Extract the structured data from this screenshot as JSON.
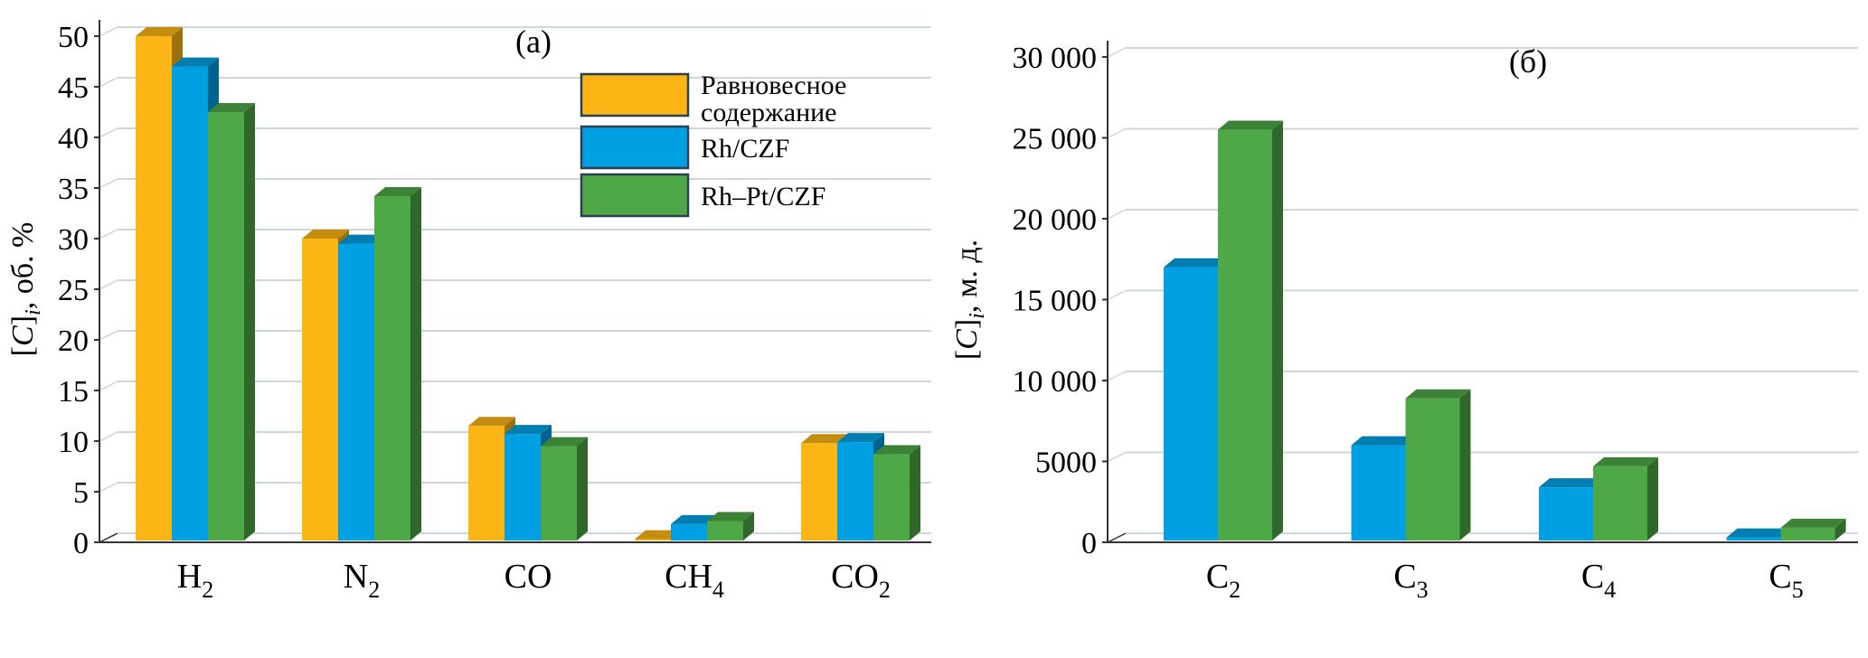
{
  "chart_data": [
    {
      "type": "bar",
      "panel_label": "(a)",
      "ylabel_main": "[C]",
      "ylabel_sub": "i",
      "ylabel_rest": ", об. %",
      "ylim": [
        0,
        50
      ],
      "yticks": [
        0,
        5,
        10,
        15,
        20,
        25,
        30,
        35,
        40,
        45,
        50
      ],
      "categories": [
        {
          "base": "H",
          "sub": "2"
        },
        {
          "base": "N",
          "sub": "2"
        },
        {
          "base": "CO",
          "sub": ""
        },
        {
          "base": "CH",
          "sub": "4"
        },
        {
          "base": "CO",
          "sub": "2"
        }
      ],
      "series": [
        {
          "name": "Равновесное содержание",
          "color": "#FBB515",
          "values": [
            50,
            30,
            11.5,
            0.3,
            9.8
          ]
        },
        {
          "name": "Rh/CZF",
          "color": "#00A0E3",
          "values": [
            47,
            29.5,
            10.7,
            1.8,
            9.9
          ]
        },
        {
          "name": "Rh–Pt/CZF",
          "color": "#4EA847",
          "values": [
            42.5,
            34.2,
            9.5,
            2.1,
            8.7
          ]
        }
      ]
    },
    {
      "type": "bar",
      "panel_label": "(б)",
      "ylabel_main": "[C]",
      "ylabel_sub": "i",
      "ylabel_rest": ", м. д.",
      "ylim": [
        0,
        30000
      ],
      "yticks": [
        0,
        5000,
        10000,
        15000,
        20000,
        25000,
        30000
      ],
      "ytick_labels": [
        "0",
        "5000",
        "10 000",
        "15 000",
        "20 000",
        "25 000",
        "30 000"
      ],
      "categories": [
        {
          "base": "C",
          "sub": "2"
        },
        {
          "base": "C",
          "sub": "3"
        },
        {
          "base": "C",
          "sub": "4"
        },
        {
          "base": "C",
          "sub": "5"
        }
      ],
      "series": [
        {
          "name": "Rh/CZF",
          "color": "#00A0E3",
          "values": [
            17000,
            6000,
            3400,
            300
          ]
        },
        {
          "name": "Rh–Pt/CZF",
          "color": "#4EA847",
          "values": [
            25500,
            8900,
            4700,
            900
          ]
        }
      ]
    }
  ],
  "legend": {
    "items": [
      {
        "line1": "Равновесное",
        "line2": "содержание",
        "color": "#FBB515"
      },
      {
        "line1": "Rh/CZF",
        "line2": "",
        "color": "#00A0E3"
      },
      {
        "line1": "Rh–Pt/CZF",
        "line2": "",
        "color": "#4EA847"
      }
    ]
  }
}
